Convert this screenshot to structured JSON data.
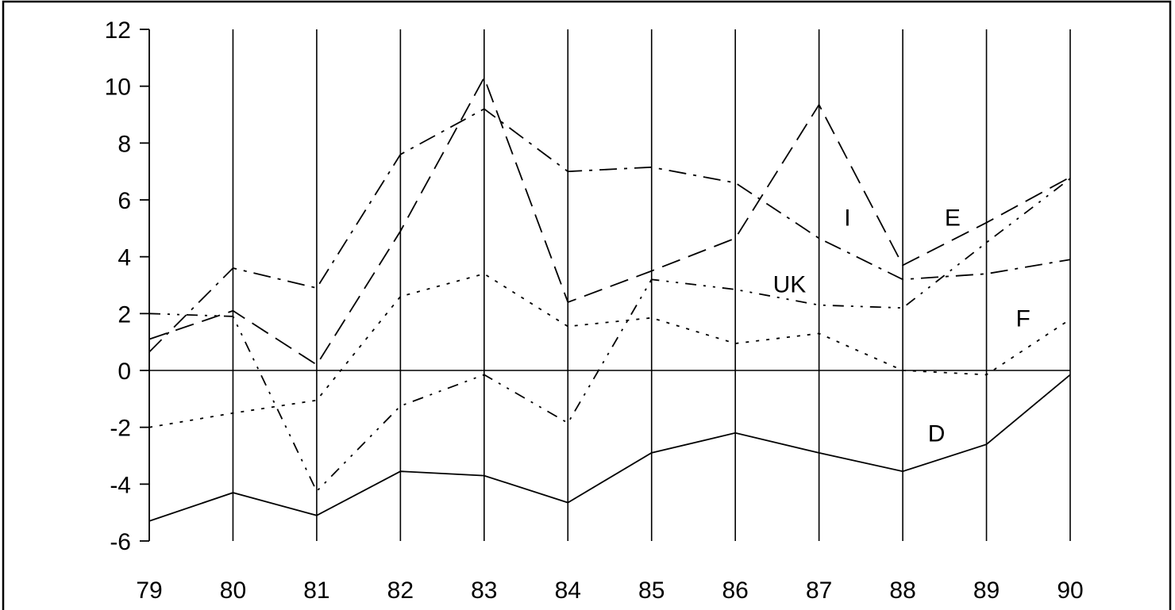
{
  "chart_data": {
    "type": "line",
    "title": "",
    "xlabel": "",
    "ylabel": "",
    "x": [
      "79",
      "80",
      "81",
      "82",
      "83",
      "84",
      "85",
      "86",
      "87",
      "88",
      "89",
      "90"
    ],
    "y_ticks": [
      "12",
      "10",
      "8",
      "6",
      "4",
      "2",
      "0",
      "-2",
      "-4",
      "-6"
    ],
    "ylim": [
      -6,
      12
    ],
    "grid": "vertical lines at each year",
    "series": [
      {
        "name": "D",
        "dash": "solid",
        "label_at": [
          88.3,
          -2.5
        ],
        "values": [
          -5.3,
          -4.3,
          -5.1,
          -3.55,
          -3.7,
          -4.65,
          -2.9,
          -2.2,
          -2.9,
          -3.55,
          -2.6,
          -0.15
        ]
      },
      {
        "name": "F",
        "dash": "dot",
        "label_at": [
          89.35,
          1.55
        ],
        "values": [
          -2.0,
          -1.5,
          -1.05,
          2.6,
          3.4,
          1.55,
          1.85,
          0.95,
          1.3,
          0.0,
          -0.15,
          1.8
        ]
      },
      {
        "name": "I",
        "dash": "dash",
        "label_at": [
          87.3,
          5.1
        ],
        "values": [
          1.1,
          2.1,
          0.2,
          4.9,
          10.3,
          2.4,
          3.5,
          4.65,
          9.35,
          3.7,
          5.2,
          6.8
        ]
      },
      {
        "name": "E",
        "dash": "dashdot",
        "label_at": [
          88.5,
          5.1
        ],
        "values": [
          0.65,
          3.6,
          2.9,
          7.6,
          9.2,
          7.0,
          7.15,
          6.6,
          4.65,
          3.2,
          3.4,
          3.9
        ]
      },
      {
        "name": "UK",
        "dash": "dashdot2",
        "label_at": [
          86.45,
          2.75
        ],
        "values": [
          2.0,
          1.9,
          -4.25,
          -1.25,
          -0.15,
          -1.85,
          3.2,
          2.85,
          2.3,
          2.2,
          4.5,
          6.75
        ]
      }
    ]
  }
}
